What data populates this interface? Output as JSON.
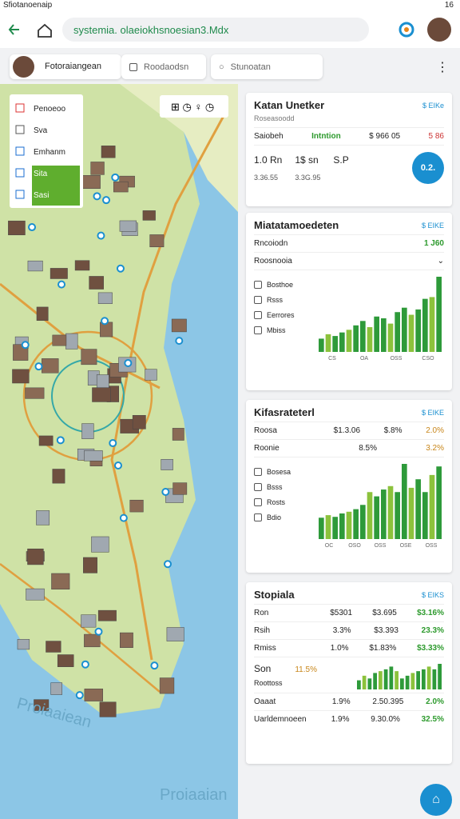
{
  "status_bar": {
    "title": "Sfiotanoenaip",
    "time": "16"
  },
  "browser": {
    "url": "systemia. olaeiokhsnoesian3.Mdx"
  },
  "tabs": [
    "Fotoraiangean",
    "Roodaodsn",
    "Stunoatan"
  ],
  "map": {
    "legend": [
      "Penoeoo",
      "Sva",
      "Emhanm",
      "Sita",
      "Sasi"
    ],
    "labels": [
      "Proiaaiean",
      "Proiaaian"
    ]
  },
  "cards": [
    {
      "title": "Katan Unetker",
      "subtitle": "Roseasoodd",
      "link": "$ EIKe",
      "row": [
        "Saiobeh",
        "Intntion",
        "$ 966 05",
        "5 86"
      ],
      "stats": [
        "1.0 Rn",
        "1$ sn",
        "S.P"
      ],
      "stat_values": [
        "3.36.55",
        "3.3G.95"
      ],
      "badge": "0.2."
    },
    {
      "title": "Miatatamoedeten",
      "link": "$ EIKE",
      "item": "Rncoiodn",
      "item_value": "1 J60",
      "dropdown": "Roosnooia",
      "list": [
        "Bosthoe",
        "Rsss",
        "Eerrores",
        "Mbiss"
      ],
      "chart": {
        "values": [
          15,
          20,
          18,
          22,
          25,
          30,
          35,
          28,
          40,
          38,
          32,
          45,
          50,
          42,
          48,
          60,
          62,
          85
        ],
        "labels": [
          "CS",
          "OA",
          "OSS",
          "CSO"
        ]
      }
    },
    {
      "title": "Kifasrateterl",
      "link": "$ EIKE",
      "rows": [
        [
          "Roosa",
          "$1.3.06",
          "$.8%",
          "2.0%"
        ],
        [
          "Roonie",
          "8.5%",
          "3.2%"
        ]
      ],
      "list": [
        "Bosesa",
        "Bsss",
        "Rosts",
        "Bdio"
      ],
      "chart": {
        "values": [
          25,
          28,
          26,
          30,
          32,
          35,
          40,
          55,
          50,
          58,
          62,
          55,
          88,
          60,
          70,
          55,
          75,
          85
        ],
        "labels": [
          "OC",
          "OSO",
          "OSS",
          "OSE",
          "OSS"
        ]
      }
    },
    {
      "title": "Stopiala",
      "link": "$ EIKS",
      "rows": [
        [
          "Ron",
          "$5301",
          "$3.695",
          "$3.16%"
        ],
        [
          "Rsih",
          "3.3%",
          "$3.393",
          "23.3%"
        ],
        [
          "Rmiss",
          "1.0%",
          "$1.83%",
          "$3.33%"
        ]
      ],
      "highlight": {
        "label": "Son",
        "value": "11.5%",
        "sub": "Roottoss",
        "chart": [
          10,
          15,
          12,
          18,
          20,
          22,
          25,
          20,
          12,
          15,
          18,
          20,
          22,
          25,
          22,
          28
        ]
      },
      "rows2": [
        [
          "Oaaat",
          "1.9%",
          "2.50.395",
          "2.0%"
        ],
        [
          "Uarldemnoeen",
          "1.9%",
          "9.30.0%",
          "32.5%"
        ]
      ]
    }
  ]
}
